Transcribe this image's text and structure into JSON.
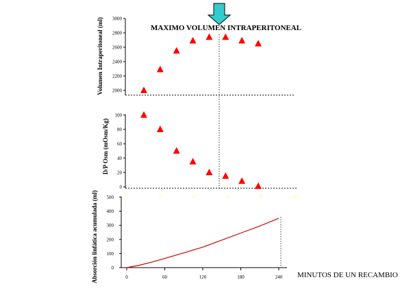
{
  "colors": {
    "marker": "#ff0000",
    "line": "#cc0000",
    "arrow_fill": "#33cccc",
    "axis": "#000000",
    "ghost_tick": "#ffff66"
  },
  "icons": {
    "top_arrow": "down-arrow-icon"
  },
  "chart_data": [
    {
      "type": "scatter",
      "title": "MAXIMO VOLUMEN INTRAPERITONEAL",
      "ylabel": "Volumen Intraperitoneal (ml)",
      "ylim": [
        2000,
        3000
      ],
      "yticks": [
        "2000",
        "2200",
        "2400",
        "2600",
        "2800",
        "3000"
      ],
      "x": [
        30,
        60,
        90,
        120,
        150,
        180,
        210,
        240
      ],
      "y": [
        2000,
        2290,
        2550,
        2690,
        2740,
        2740,
        2690,
        2650
      ],
      "marker": "triangle"
    },
    {
      "type": "scatter",
      "ylabel": "D/P Osm (mOsm/Kg)",
      "ylim": [
        0,
        100
      ],
      "yticks": [
        "0",
        "20",
        "40",
        "60",
        "80",
        "100"
      ],
      "xticks": [
        "0",
        "2",
        "4",
        "6",
        "8",
        "10"
      ],
      "x": [
        30,
        60,
        90,
        120,
        150,
        180,
        210,
        240
      ],
      "y": [
        100,
        80,
        50,
        35,
        20,
        15,
        8,
        1
      ],
      "marker": "triangle"
    },
    {
      "type": "line",
      "xlabel": "MINUTOS DE UN RECAMBIO",
      "ylabel": "Absorción linfática acumulada (ml)",
      "xlim": [
        0,
        250
      ],
      "ylim": [
        0,
        500
      ],
      "xticks": [
        "0",
        "60",
        "120",
        "180",
        "240"
      ],
      "yticks": [
        "0",
        "100",
        "200",
        "300",
        "400",
        "500"
      ],
      "x": [
        0,
        20,
        40,
        60,
        90,
        120,
        150,
        180,
        210,
        240
      ],
      "y": [
        0,
        17,
        40,
        65,
        105,
        145,
        195,
        245,
        295,
        350
      ]
    }
  ]
}
